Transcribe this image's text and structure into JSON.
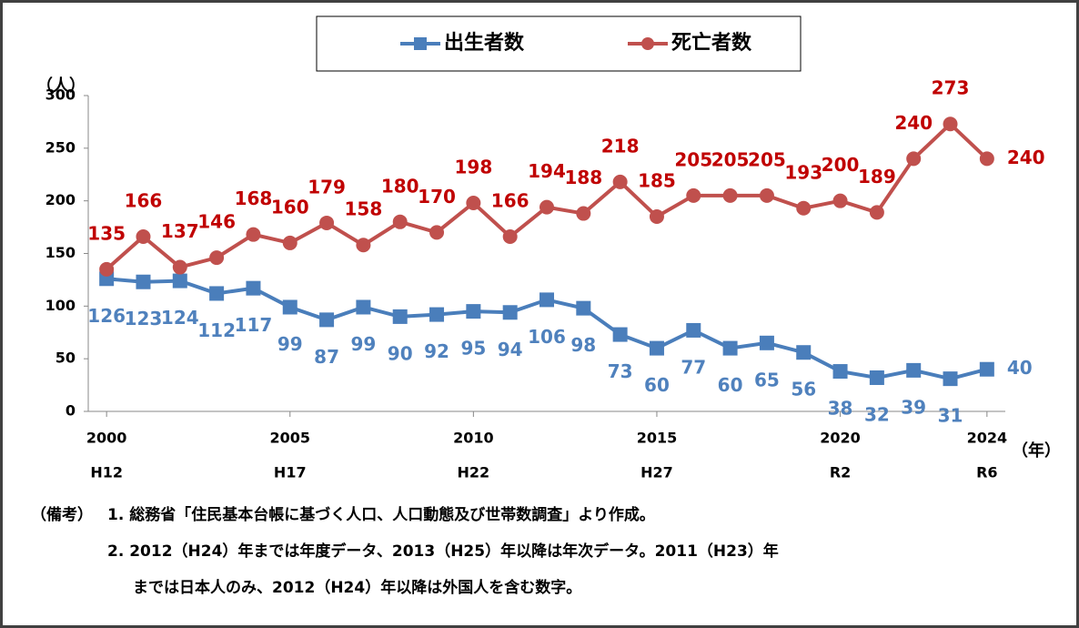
{
  "chart_data": {
    "type": "line",
    "x": [
      2000,
      2001,
      2002,
      2003,
      2004,
      2005,
      2006,
      2007,
      2008,
      2009,
      2010,
      2011,
      2012,
      2013,
      2014,
      2015,
      2016,
      2017,
      2018,
      2019,
      2020,
      2021,
      2022,
      2023,
      2024
    ],
    "series": [
      {
        "name": "出生者数",
        "color": "#4a7ebb",
        "label_color": "#4f81bd",
        "marker": "square",
        "values": [
          126,
          123,
          124,
          112,
          117,
          99,
          87,
          99,
          90,
          92,
          95,
          94,
          106,
          98,
          73,
          60,
          77,
          60,
          65,
          56,
          38,
          32,
          39,
          31,
          40
        ]
      },
      {
        "name": "死亡者数",
        "color": "#c0504d",
        "label_color": "#c00000",
        "marker": "circle",
        "values": [
          135,
          166,
          137,
          146,
          168,
          160,
          179,
          158,
          180,
          170,
          198,
          166,
          194,
          188,
          218,
          185,
          205,
          205,
          205,
          193,
          200,
          189,
          240,
          273,
          240
        ]
      }
    ],
    "xlim": [
      1999.5,
      2024.5
    ],
    "xticks": [
      2000,
      2005,
      2010,
      2015,
      2020,
      2024
    ],
    "x_sublabels": [
      "H12",
      "H17",
      "H22",
      "H27",
      "R2",
      "R6"
    ],
    "ylim": [
      0,
      300
    ],
    "yticks": [
      0,
      50,
      100,
      150,
      200,
      250,
      300
    ],
    "y_unit": "（人）",
    "x_unit": "（年）",
    "grid": false,
    "notes_head": "（備考）",
    "notes": [
      "1. 総務省「住民基本台帳に基づく人口、人口動態及び世帯数調査」より作成。",
      "2. 2012（H24）年までは年度データ、2013（H25）年以降は年次データ。2011（H23）年",
      "までは日本人のみ、2012（H24）年以降は外国人を含む数字。"
    ]
  }
}
